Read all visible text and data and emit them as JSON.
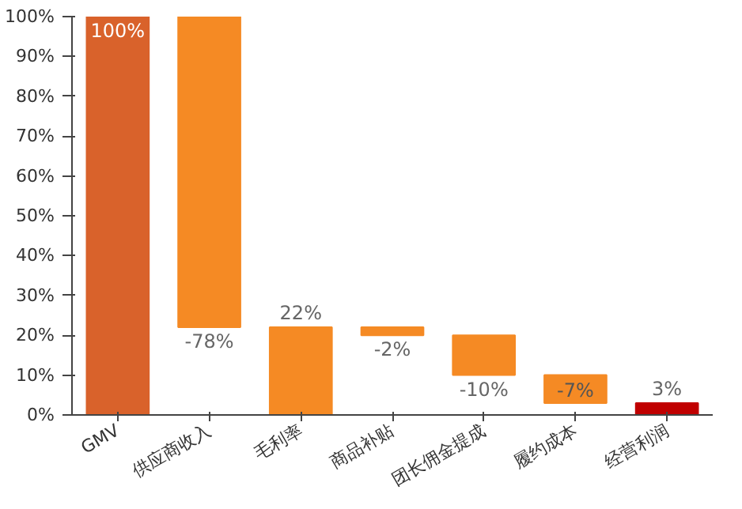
{
  "chart_data": {
    "type": "bar",
    "categories": [
      "GMV",
      "供应商收入",
      "毛利率",
      "商品补贴",
      "团长佣金提成",
      "履约成本",
      "经营利润"
    ],
    "values": [
      100,
      -78,
      22,
      -2,
      -10,
      -7,
      3
    ],
    "base": [
      0,
      100,
      0,
      22,
      20,
      10,
      0
    ],
    "colors": [
      "#d9622b",
      "#f58a24",
      "#f58a24",
      "#f58a24",
      "#f58a24",
      "#f58a24",
      "#c00000"
    ],
    "value_labels": [
      "100%",
      "-78%",
      "22%",
      "-2%",
      "-10%",
      "-7%",
      "3%"
    ],
    "ylim": [
      0,
      100
    ],
    "yticks": [
      {
        "value": 0,
        "label": "0%"
      },
      {
        "value": 10,
        "label": "10%"
      },
      {
        "value": 20,
        "label": "20%"
      },
      {
        "value": 30,
        "label": "30%"
      },
      {
        "value": 40,
        "label": "40%"
      },
      {
        "value": 50,
        "label": "50%"
      },
      {
        "value": 60,
        "label": "60%"
      },
      {
        "value": 70,
        "label": "70%"
      },
      {
        "value": 80,
        "label": "80%"
      },
      {
        "value": 90,
        "label": "90%"
      },
      {
        "value": 100,
        "label": "100%"
      }
    ],
    "grid": false
  }
}
